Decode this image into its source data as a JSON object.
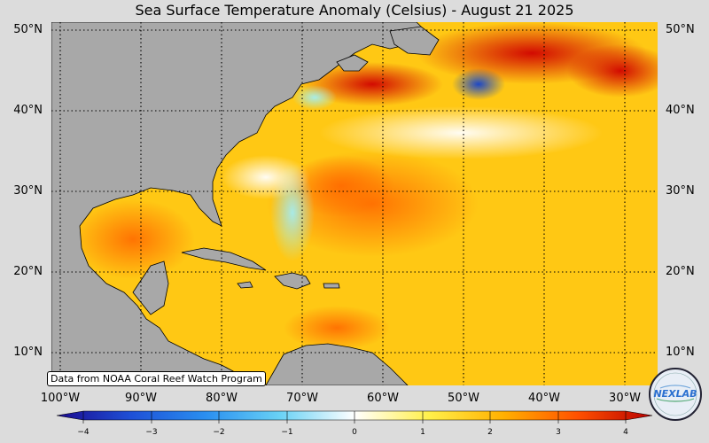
{
  "title": "Sea Surface Temperature Anomaly (Celsius) - August 21 2025",
  "credit": "Data from NOAA Coral Reef Watch Program",
  "logo_text": "NEXLAB",
  "lat_labels_left": [
    "50°N",
    "40°N",
    "30°N",
    "20°N",
    "10°N"
  ],
  "lat_labels_right": [
    "50°N",
    "40°N",
    "30°N",
    "20°N",
    "10°N"
  ],
  "lon_labels": [
    "100°W",
    "90°W",
    "80°W",
    "70°W",
    "60°W",
    "50°W",
    "40°W",
    "30°W"
  ],
  "colorbar": {
    "ticks": [
      "−4",
      "−3",
      "−2",
      "−1",
      "0",
      "1",
      "2",
      "3",
      "4"
    ],
    "colors": [
      "#1b0a8f",
      "#1e50d6",
      "#2a8ff0",
      "#69d2f5",
      "#ffffff",
      "#fff04a",
      "#ffb000",
      "#ff5000",
      "#b80000"
    ]
  },
  "colors": {
    "land": "#a8a8a8",
    "ocean_warm": "#ffc814",
    "background": "#dcdcdc"
  }
}
